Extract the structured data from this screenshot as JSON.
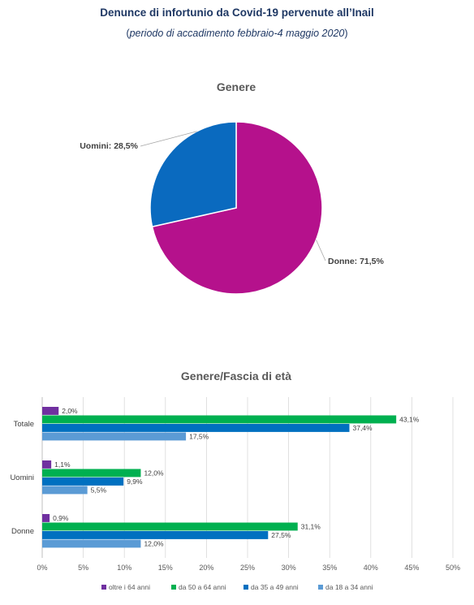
{
  "header": {
    "title": "Denunce di infortunio da Covid-19 pervenute all’Inail",
    "subtitle_open": "(",
    "subtitle_italic": "periodo di accadimento febbraio-4 maggio 2020",
    "subtitle_close": ")"
  },
  "chart_data": [
    {
      "type": "pie",
      "title": "Genere",
      "slices": [
        {
          "label": "Donne",
          "value": 71.5,
          "display": "Donne: 71,5%",
          "color": "#b5118c"
        },
        {
          "label": "Uomini",
          "value": 28.5,
          "display": "Uomini: 28,5%",
          "color": "#0a6abf"
        }
      ]
    },
    {
      "type": "bar",
      "orientation": "horizontal",
      "title": "Genere/Fascia di età",
      "categories": [
        "Totale",
        "Uomini",
        "Donne"
      ],
      "series": [
        {
          "name": "oltre i 64 anni",
          "color": "#7030a0",
          "values": [
            2.0,
            1.1,
            0.9
          ],
          "labels": [
            "2,0%",
            "1,1%",
            "0,9%"
          ]
        },
        {
          "name": "da 50 a 64 anni",
          "color": "#00b050",
          "values": [
            43.1,
            12.0,
            31.1
          ],
          "labels": [
            "43,1%",
            "12,0%",
            "31,1%"
          ]
        },
        {
          "name": "da 35 a 49 anni",
          "color": "#0070c0",
          "values": [
            37.4,
            9.9,
            27.5
          ],
          "labels": [
            "37,4%",
            "9,9%",
            "27,5%"
          ]
        },
        {
          "name": "da 18 a 34 anni",
          "color": "#5b9bd5",
          "values": [
            17.5,
            5.5,
            12.0
          ],
          "labels": [
            "17,5%",
            "5,5%",
            "12,0%"
          ]
        }
      ],
      "xlim": [
        0,
        50
      ],
      "xticks": [
        0,
        5,
        10,
        15,
        20,
        25,
        30,
        35,
        40,
        45,
        50
      ],
      "xtick_labels": [
        "0%",
        "5%",
        "10%",
        "15%",
        "20%",
        "25%",
        "30%",
        "35%",
        "40%",
        "45%",
        "50%"
      ],
      "grid": true,
      "legend": "bottom"
    }
  ]
}
